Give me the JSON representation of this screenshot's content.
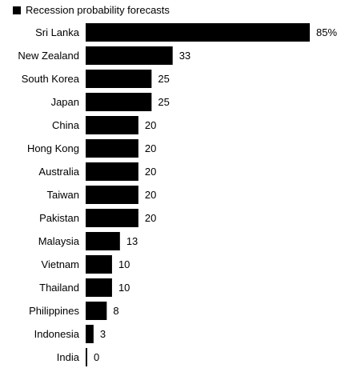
{
  "chart_data": {
    "type": "bar",
    "orientation": "horizontal",
    "legend": {
      "label": "Recession probability forecasts",
      "placement": "top-left"
    },
    "categories": [
      "Sri Lanka",
      "New Zealand",
      "South Korea",
      "Japan",
      "China",
      "Hong Kong",
      "Australia",
      "Taiwan",
      "Pakistan",
      "Malaysia",
      "Vietnam",
      "Thailand",
      "Philippines",
      "Indonesia",
      "India"
    ],
    "values": [
      85,
      33,
      25,
      25,
      20,
      20,
      20,
      20,
      20,
      13,
      10,
      10,
      8,
      3,
      0
    ],
    "value_labels": [
      "85%",
      "33",
      "25",
      "25",
      "20",
      "20",
      "20",
      "20",
      "20",
      "13",
      "10",
      "10",
      "8",
      "3",
      "0"
    ],
    "xlim": [
      0,
      85
    ],
    "grid": false,
    "bar_color": "#000000"
  }
}
